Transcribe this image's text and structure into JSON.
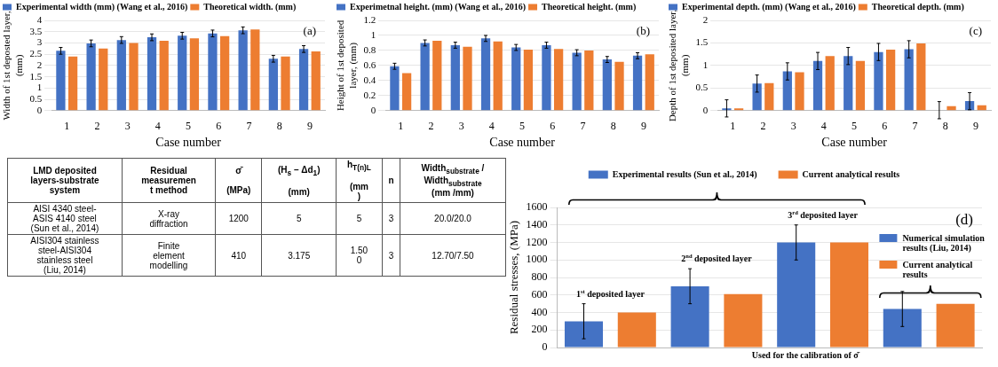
{
  "chart_data": [
    {
      "type": "bar",
      "annotations": [
        "(a)"
      ],
      "xlabel": "Case number",
      "ylabel": "Width of 1st deposted layer,\n(mm)",
      "categories": [
        "1",
        "2",
        "3",
        "4",
        "5",
        "6",
        "7",
        "8",
        "9"
      ],
      "series": [
        {
          "name": "Experimental width (mm) (Wang et al., 2016)",
          "color": "#4472c4",
          "values": [
            2.65,
            2.98,
            3.13,
            3.25,
            3.32,
            3.42,
            3.56,
            2.3,
            2.73
          ],
          "errors": [
            0.15,
            0.15,
            0.15,
            0.15,
            0.15,
            0.15,
            0.15,
            0.15,
            0.15
          ]
        },
        {
          "name": "Theoretical width. (mm)",
          "color": "#ed7d31",
          "values": [
            2.4,
            2.75,
            3.0,
            3.1,
            3.2,
            3.3,
            3.6,
            2.4,
            2.62
          ]
        }
      ],
      "ylim": [
        0,
        4
      ],
      "yticks": [
        0,
        0.5,
        1,
        1.5,
        2,
        2.5,
        3,
        3.5,
        4
      ],
      "grid": "y",
      "legend": "top"
    },
    {
      "type": "bar",
      "annotations": [
        "(b)"
      ],
      "xlabel": "Case number",
      "ylabel": "Height of 1st deposited\nlayer, (mm)",
      "categories": [
        "1",
        "2",
        "3",
        "4",
        "5",
        "6",
        "7",
        "8",
        "9"
      ],
      "series": [
        {
          "name": "Experimetnal height. (mm) (Wang et al., 2016)",
          "color": "#4472c4",
          "values": [
            0.59,
            0.9,
            0.87,
            0.96,
            0.84,
            0.87,
            0.77,
            0.68,
            0.73
          ],
          "errors": [
            0.04,
            0.04,
            0.04,
            0.04,
            0.04,
            0.04,
            0.04,
            0.04,
            0.04
          ]
        },
        {
          "name": "Theoretical height. (mm)",
          "color": "#ed7d31",
          "values": [
            0.5,
            0.93,
            0.85,
            0.92,
            0.81,
            0.82,
            0.8,
            0.65,
            0.75
          ]
        }
      ],
      "ylim": [
        0,
        1.2
      ],
      "yticks": [
        0,
        0.2,
        0.4,
        0.6,
        0.8,
        1,
        1.2
      ],
      "grid": "y",
      "legend": "top"
    },
    {
      "type": "bar",
      "annotations": [
        "(c)"
      ],
      "xlabel": "Case number",
      "ylabel": "Depth of 1st deposited layer,\n(mm)",
      "categories": [
        "1",
        "2",
        "3",
        "4",
        "5",
        "6",
        "7",
        "8",
        "9"
      ],
      "series": [
        {
          "name": "Experimental depth. (mm) (Wang et al., 2016)",
          "color": "#4472c4",
          "values": [
            0.05,
            0.6,
            0.87,
            1.1,
            1.21,
            1.3,
            1.36,
            0.01,
            0.21
          ],
          "errors": [
            0.19,
            0.19,
            0.19,
            0.19,
            0.19,
            0.19,
            0.19,
            0.19,
            0.19
          ]
        },
        {
          "name": "Theoretical depth. (mm)",
          "color": "#ed7d31",
          "values": [
            0.05,
            0.61,
            0.85,
            1.21,
            1.1,
            1.35,
            1.49,
            0.1,
            0.12
          ]
        }
      ],
      "ylim": [
        0,
        2
      ],
      "yticks": [
        0,
        0.5,
        1,
        1.5,
        2
      ],
      "grid": "y",
      "legend": "top"
    },
    {
      "type": "other",
      "categories": [
        "LMD deposited\nlayers-substrate\nsystem",
        "Residual\nmeasuremen\nt method",
        "σ̄\n\n(MPa)",
        "(H$_{s}$ – Δd$_{1}$)\n\n(mm)",
        "h$_{T(n)L}$\n\n(mm\n)",
        "n",
        "Width$_{substrate}$ /\nWidth$_{substrate}$\n(mm /mm)"
      ],
      "cell_labels": [
        [
          "AISI 4340 steel-\nASIS 4140 steel\n(Sun et al., 2014)",
          "X-ray\ndiffraction",
          "1200",
          "5",
          "5",
          "3",
          "20.0/20.0"
        ],
        [
          "AISI304 stainless\nsteel-AISI304\nstainless steel\n(Liu, 2014)",
          "Finite\nelement\nmodelling",
          "410",
          "3.175",
          "1.50\n0",
          "3",
          "12.70/7.50"
        ]
      ]
    },
    {
      "type": "bar",
      "annotations": [
        "(d)"
      ],
      "xlabel": "Used for the calibration of σ̄",
      "ylabel": "Residual stresses, (MPa)",
      "categories": [
        "1$^{st}$ deposited layer",
        "2$^{nd}$ deposited layer",
        "3$^{rd}$ deposited layer",
        null
      ],
      "series": [
        {
          "name": "Experimental results (Sun et al., 2014)",
          "color": "#4472c4",
          "values": [
            300,
            700,
            1200,
            null
          ],
          "errors": [
            200,
            200,
            200,
            null
          ]
        },
        {
          "name": "Current analytical results",
          "color": "#ed7d31",
          "values": [
            400,
            610,
            1200,
            null
          ]
        },
        {
          "name": "Numerical simulation results (Liu, 2014)",
          "color": "#4472c4",
          "values": [
            null,
            null,
            null,
            440
          ],
          "errors": [
            null,
            null,
            null,
            200
          ]
        },
        {
          "name": "Current analytical results",
          "color": "#ed7d31",
          "values": [
            null,
            null,
            null,
            500
          ]
        }
      ],
      "ylim": [
        0,
        1600
      ],
      "yticks": [
        0,
        200,
        400,
        600,
        800,
        1000,
        1200,
        1400,
        1600
      ],
      "grid": "y",
      "legend": "top",
      "tick_labels": "y"
    }
  ]
}
